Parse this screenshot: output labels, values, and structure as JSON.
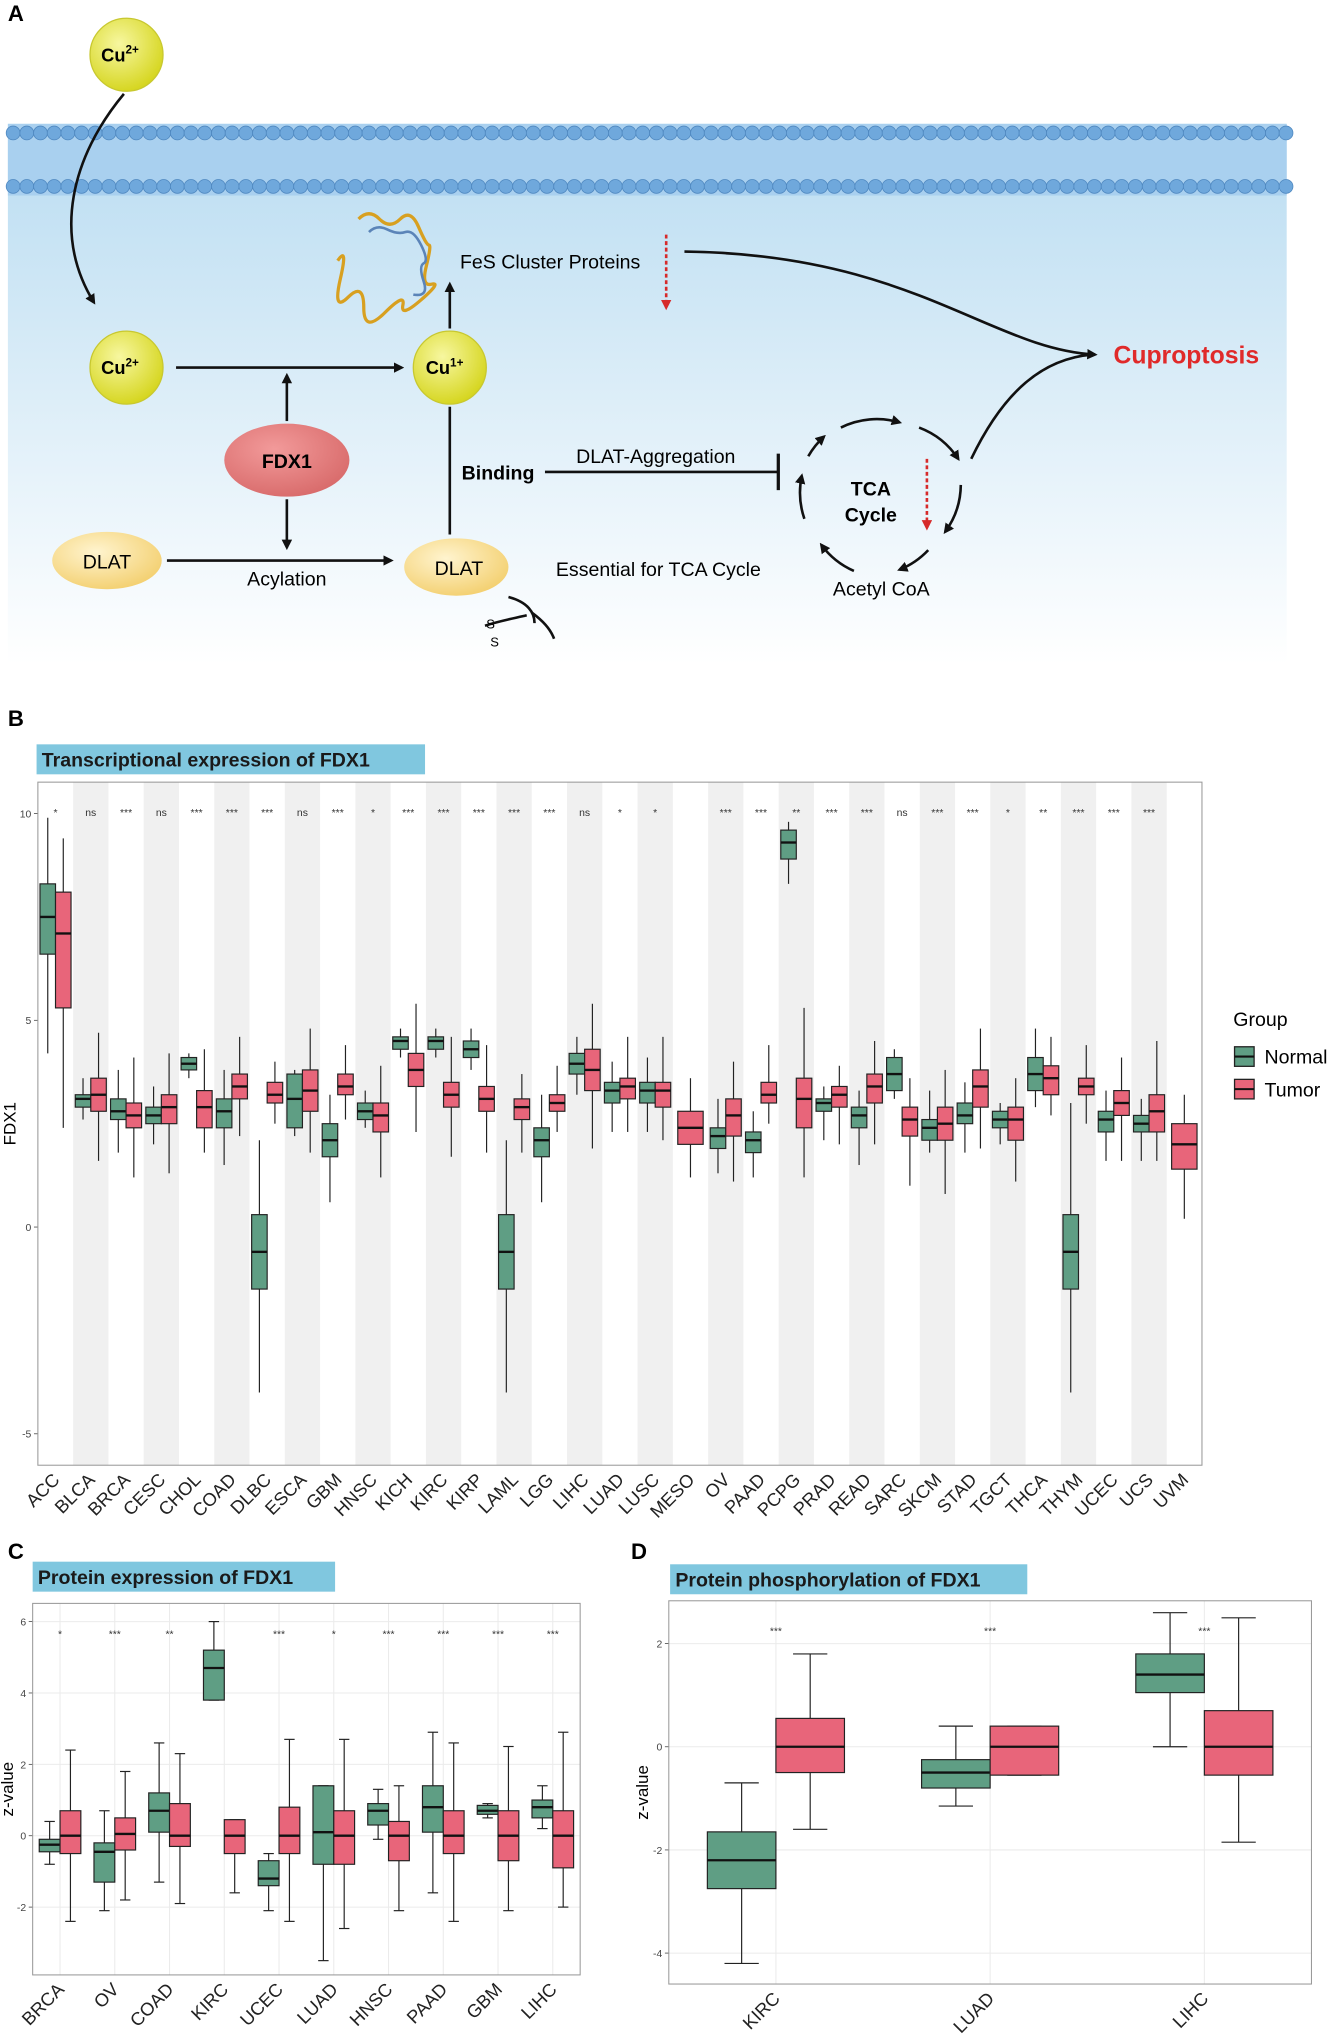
{
  "panels": [
    "A",
    "B",
    "C",
    "D"
  ],
  "diagram": {
    "cu_top": {
      "symbol": "Cu",
      "charge": "2+"
    },
    "cu_left": {
      "symbol": "Cu",
      "charge": "2+"
    },
    "cu_right": {
      "symbol": "Cu",
      "charge": "1+"
    },
    "fes": "FeS Cluster Proteins",
    "outcome": "Cuproptosis",
    "fdx1": "FDX1",
    "binding": "Binding",
    "aggregation": "DLAT-Aggregation",
    "tca": [
      "TCA",
      "Cycle"
    ],
    "dlat_left": "DLAT",
    "acylation": "Acylation",
    "dlat_right": "DLAT",
    "essential": "Essential for TCA Cycle",
    "acetyl": "Acetyl CoA",
    "sulfur": [
      "S",
      "S"
    ]
  },
  "chart_data": [
    {
      "type": "box",
      "title": "Transcriptional expression of FDX1",
      "y_label": "FDX1",
      "legend_title": "Group",
      "legend": "right",
      "grid": false,
      "categories": [
        "ACC",
        "BLCA",
        "BRCA",
        "CESC",
        "CHOL",
        "COAD",
        "DLBC",
        "ESCA",
        "GBM",
        "HNSC",
        "KICH",
        "KIRC",
        "KIRP",
        "LAML",
        "LGG",
        "LIHC",
        "LUAD",
        "LUSC",
        "MESO",
        "OV",
        "PAAD",
        "PCPG",
        "PRAD",
        "READ",
        "SARC",
        "SKCM",
        "STAD",
        "TGCT",
        "THCA",
        "THYM",
        "UCEC",
        "UCS",
        "UVM"
      ],
      "annotations": [
        "*",
        "ns",
        "***",
        "ns",
        "***",
        "***",
        "***",
        "ns",
        "***",
        "*",
        "***",
        "***",
        "***",
        "***",
        "***",
        "ns",
        "*",
        "*",
        null,
        "***",
        "***",
        "**",
        "***",
        "***",
        "ns",
        "***",
        "***",
        "*",
        "**",
        "***",
        "***",
        "***",
        null
      ],
      "ylim": [
        -5.76,
        10.76
      ],
      "yticks": [
        -5,
        0,
        5,
        10
      ],
      "series": [
        {
          "name": "Normal",
          "color": "#5f9e84",
          "min": [
            4.2,
            2.6,
            1.8,
            2.0,
            3.6,
            1.5,
            -4.0,
            2.2,
            0.6,
            2.4,
            4.1,
            4.1,
            3.8,
            -4.0,
            0.6,
            3.2,
            2.3,
            2.3,
            null,
            1.3,
            1.2,
            8.3,
            2.1,
            1.5,
            3.1,
            1.8,
            1.8,
            2.0,
            2.9,
            -4.0,
            1.6,
            1.6,
            null
          ],
          "q1": [
            6.6,
            2.9,
            2.6,
            2.5,
            3.8,
            2.4,
            -1.5,
            2.4,
            1.7,
            2.6,
            4.3,
            4.3,
            4.1,
            -1.5,
            1.7,
            3.7,
            3.0,
            3.0,
            null,
            1.9,
            1.8,
            8.9,
            2.8,
            2.4,
            3.3,
            2.1,
            2.5,
            2.4,
            3.3,
            -1.5,
            2.3,
            2.3,
            null
          ],
          "median": [
            7.5,
            3.1,
            2.8,
            2.7,
            3.95,
            2.8,
            -0.6,
            3.1,
            2.1,
            2.8,
            4.5,
            4.5,
            4.3,
            -0.6,
            2.1,
            3.95,
            3.3,
            3.3,
            null,
            2.2,
            2.1,
            9.3,
            3.0,
            2.7,
            3.7,
            2.4,
            2.7,
            2.6,
            3.7,
            -0.6,
            2.6,
            2.5,
            null
          ],
          "q3": [
            8.3,
            3.2,
            3.1,
            2.9,
            4.1,
            3.1,
            0.3,
            3.7,
            2.5,
            3.0,
            4.6,
            4.6,
            4.5,
            0.3,
            2.4,
            4.2,
            3.5,
            3.5,
            null,
            2.4,
            2.3,
            9.6,
            3.1,
            2.9,
            4.1,
            2.6,
            3.0,
            2.8,
            4.1,
            0.3,
            2.8,
            2.7,
            null
          ],
          "max": [
            9.9,
            3.6,
            3.8,
            3.4,
            4.2,
            3.8,
            2.1,
            3.8,
            3.2,
            3.3,
            4.8,
            4.8,
            4.8,
            2.1,
            3.2,
            4.6,
            4.0,
            4.1,
            null,
            3.1,
            2.8,
            9.8,
            3.4,
            3.3,
            4.3,
            3.3,
            3.5,
            3.0,
            4.8,
            3.0,
            3.3,
            3.1,
            null
          ]
        },
        {
          "name": "Tumor",
          "color": "#e8657a",
          "min": [
            2.4,
            1.6,
            1.2,
            1.3,
            1.8,
            2.2,
            2.5,
            1.8,
            2.6,
            1.2,
            2.3,
            1.7,
            1.8,
            1.8,
            2.3,
            1.9,
            2.3,
            2.1,
            1.2,
            1.1,
            2.5,
            1.2,
            2.0,
            2.0,
            1.0,
            0.8,
            1.9,
            1.1,
            2.7,
            2.5,
            1.6,
            1.6,
            0.2
          ],
          "q1": [
            5.3,
            2.8,
            2.4,
            2.5,
            2.4,
            3.1,
            3.0,
            2.8,
            3.2,
            2.3,
            3.4,
            2.9,
            2.8,
            2.6,
            2.8,
            3.3,
            3.1,
            2.9,
            2.0,
            2.2,
            3.0,
            2.4,
            2.9,
            3.0,
            2.2,
            2.1,
            2.9,
            2.1,
            3.2,
            3.2,
            2.7,
            2.3,
            1.4
          ],
          "median": [
            7.1,
            3.2,
            2.7,
            2.9,
            2.9,
            3.4,
            3.2,
            3.3,
            3.4,
            2.7,
            3.8,
            3.2,
            3.1,
            2.9,
            3.0,
            3.8,
            3.4,
            3.3,
            2.4,
            2.7,
            3.2,
            3.1,
            3.2,
            3.4,
            2.6,
            2.5,
            3.4,
            2.6,
            3.6,
            3.4,
            3.0,
            2.8,
            2.0
          ],
          "q3": [
            8.1,
            3.6,
            3.0,
            3.2,
            3.3,
            3.7,
            3.5,
            3.8,
            3.7,
            3.0,
            4.2,
            3.5,
            3.4,
            3.1,
            3.2,
            4.3,
            3.6,
            3.5,
            2.8,
            3.1,
            3.5,
            3.6,
            3.4,
            3.7,
            2.9,
            2.9,
            3.8,
            2.9,
            3.9,
            3.6,
            3.3,
            3.2,
            2.5
          ],
          "max": [
            9.4,
            4.7,
            4.1,
            4.2,
            4.3,
            4.6,
            4.0,
            4.8,
            4.4,
            3.9,
            5.4,
            4.6,
            4.4,
            3.7,
            3.9,
            5.4,
            4.6,
            4.6,
            3.6,
            4.0,
            4.4,
            5.3,
            3.9,
            4.5,
            3.6,
            3.8,
            4.8,
            3.6,
            4.6,
            4.4,
            4.1,
            4.5,
            3.2
          ]
        }
      ]
    },
    {
      "type": "box",
      "title": "Protein expression of FDX1",
      "y_label": "z-value",
      "grid": true,
      "categories": [
        "BRCA",
        "OV",
        "COAD",
        "KIRC",
        "UCEC",
        "LUAD",
        "HNSC",
        "PAAD",
        "GBM",
        "LIHC"
      ],
      "annotations": [
        "*",
        "***",
        "**",
        null,
        "***",
        "*",
        "***",
        "***",
        "***",
        "***"
      ],
      "ylim": [
        -3.9,
        6.51
      ],
      "yticks": [
        -2,
        0,
        2,
        4,
        6
      ],
      "series": [
        {
          "name": "Normal",
          "color": "#5f9e84",
          "min": [
            -0.8,
            -2.1,
            -1.3,
            3.8,
            -2.1,
            -3.5,
            -0.1,
            -1.6,
            0.5,
            0.2
          ],
          "q1": [
            -0.45,
            -1.3,
            0.1,
            3.8,
            -1.4,
            -0.8,
            0.3,
            0.1,
            0.6,
            0.5
          ],
          "median": [
            -0.25,
            -0.45,
            0.7,
            4.7,
            -1.2,
            0.1,
            0.7,
            0.8,
            0.7,
            0.8
          ],
          "q3": [
            -0.1,
            -0.2,
            1.2,
            5.2,
            -0.7,
            1.4,
            0.9,
            1.4,
            0.85,
            1.0
          ],
          "max": [
            0.4,
            0.7,
            2.6,
            6.0,
            -0.5,
            1.4,
            1.3,
            2.9,
            0.9,
            1.4
          ]
        },
        {
          "name": "Tumor",
          "color": "#e8657a",
          "min": [
            -2.4,
            -1.8,
            -1.9,
            -1.6,
            -2.4,
            -2.6,
            -2.1,
            -2.4,
            -2.1,
            -2.0
          ],
          "q1": [
            -0.5,
            -0.4,
            -0.3,
            -0.5,
            -0.5,
            -0.8,
            -0.7,
            -0.5,
            -0.7,
            -0.9
          ],
          "median": [
            0.0,
            0.05,
            0.0,
            0.0,
            0.0,
            0.0,
            0.0,
            0.0,
            0.0,
            0.0
          ],
          "q3": [
            0.7,
            0.5,
            0.9,
            0.45,
            0.8,
            0.7,
            0.4,
            0.7,
            0.7,
            0.7
          ],
          "max": [
            2.4,
            1.8,
            2.3,
            0.45,
            2.7,
            2.7,
            1.4,
            2.6,
            2.5,
            2.9
          ]
        }
      ]
    },
    {
      "type": "box",
      "title": "Protein phosphorylation of FDX1",
      "y_label": "z-value",
      "grid": true,
      "categories": [
        "KIRC",
        "LUAD",
        "LIHC"
      ],
      "annotations": [
        "***",
        "***",
        "***"
      ],
      "ylim": [
        -4.6,
        2.83
      ],
      "yticks": [
        -4,
        -2,
        0,
        2
      ],
      "series": [
        {
          "name": "Normal",
          "color": "#5f9e84",
          "min": [
            -4.2,
            -1.15,
            0.0
          ],
          "q1": [
            -2.75,
            -0.8,
            1.05
          ],
          "median": [
            -2.2,
            -0.5,
            1.4
          ],
          "q3": [
            -1.65,
            -0.25,
            1.8
          ],
          "max": [
            -0.7,
            0.4,
            2.6
          ]
        },
        {
          "name": "Tumor",
          "color": "#e8657a",
          "min": [
            -1.6,
            -0.55,
            -1.85
          ],
          "q1": [
            -0.5,
            -0.55,
            -0.55
          ],
          "median": [
            0.0,
            0.0,
            0.0
          ],
          "q3": [
            0.55,
            0.4,
            0.7
          ],
          "max": [
            1.8,
            0.4,
            2.5
          ]
        }
      ]
    }
  ]
}
